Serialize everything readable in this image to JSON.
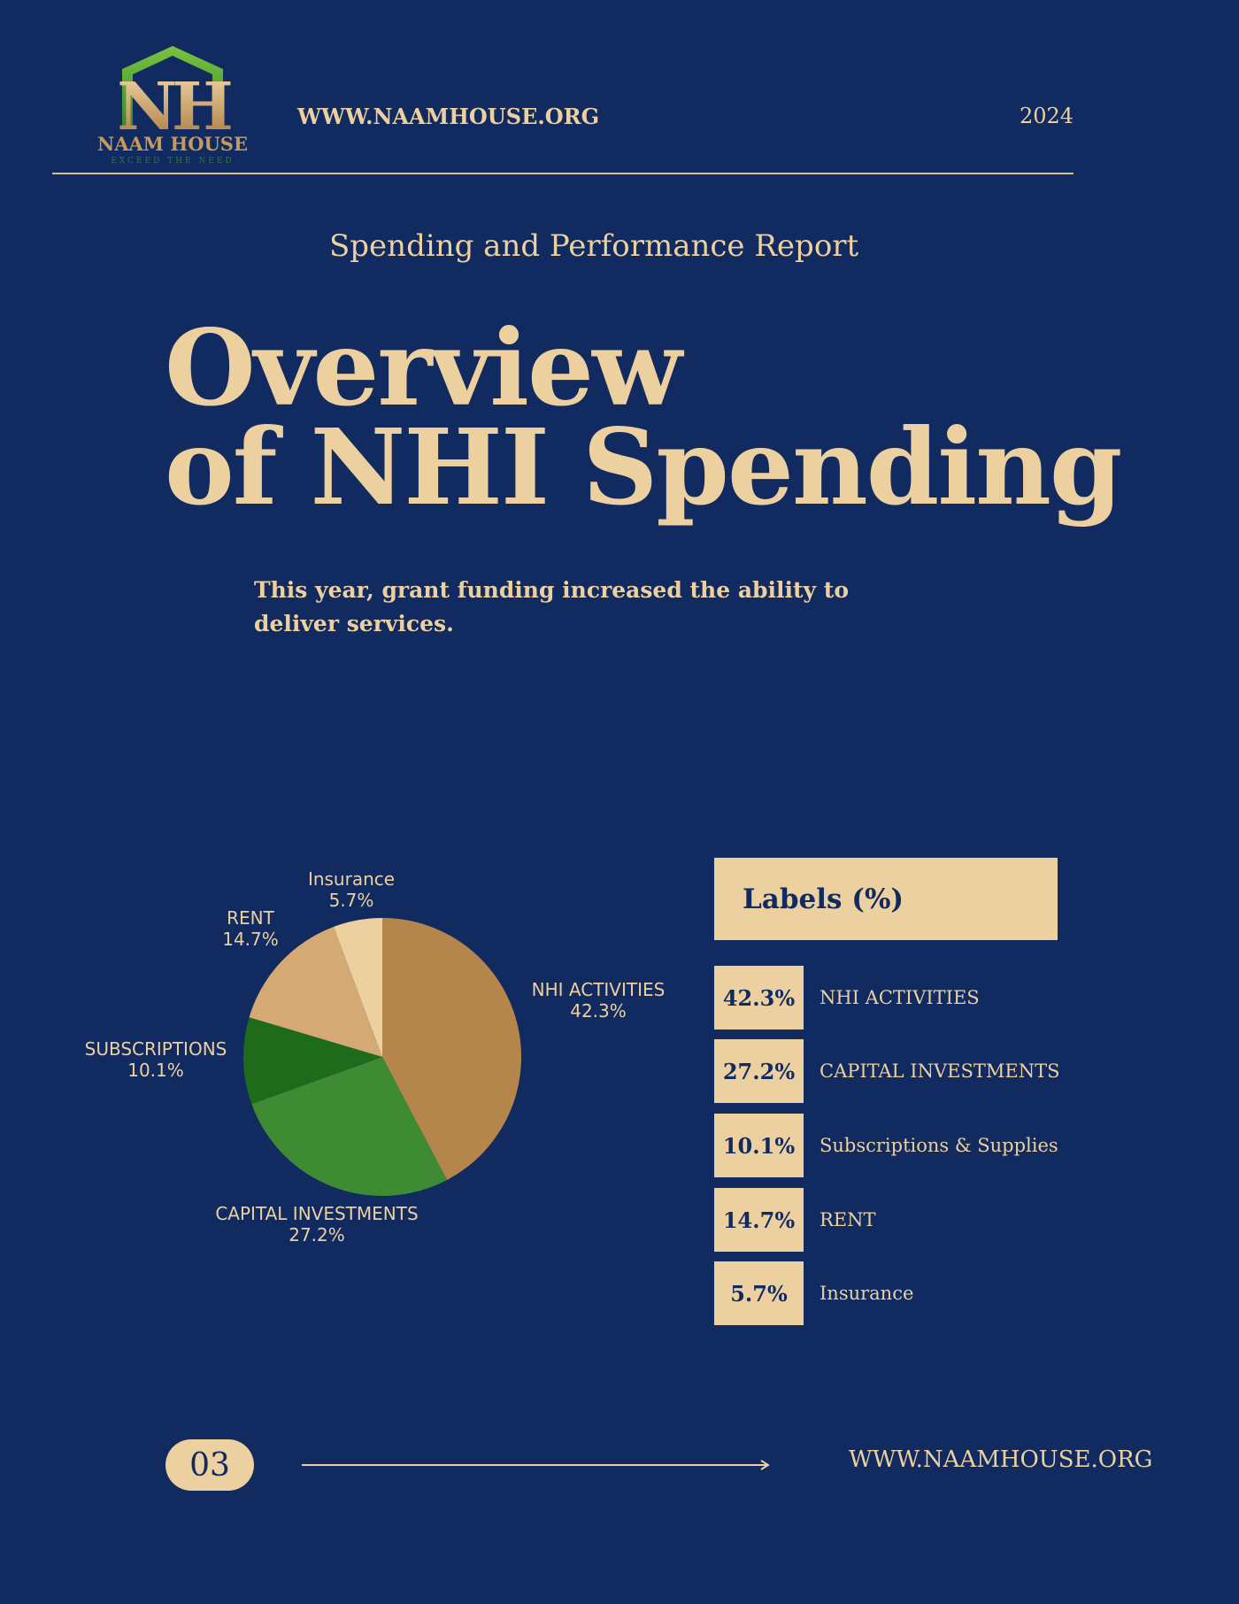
{
  "header": {
    "logo_name": "NAAM HOUSE",
    "logo_tagline": "EXCEED THE NEED",
    "website": "WWW.NAAMHOUSE.ORG",
    "year": "2024"
  },
  "report_subtitle": "Spending and Performance Report",
  "title": {
    "line1": "Overview",
    "line2": "of NHI Spending"
  },
  "intro": "This year, grant funding increased the ability to deliver services.",
  "colors": {
    "background": "#112a5f",
    "accent": "#ecd09f",
    "slice_nhi": "#b5864b",
    "slice_capital": "#3e8b33",
    "slice_subscriptions": "#1e6b1c",
    "slice_rent": "#d4a974",
    "slice_insurance": "#ecd09f"
  },
  "chart_data": {
    "type": "pie",
    "title": "",
    "slices": [
      {
        "label": "NHI ACTIVITIES",
        "value": 42.3,
        "value_label": "42.3%",
        "color": "#b5864b"
      },
      {
        "label": "CAPITAL INVESTMENTS",
        "value": 27.2,
        "value_label": "27.2%",
        "color": "#3e8b33"
      },
      {
        "label": "SUBSCRIPTIONS",
        "value": 10.1,
        "value_label": "10.1%",
        "color": "#1e6b1c"
      },
      {
        "label": "RENT",
        "value": 14.7,
        "value_label": "14.7%",
        "color": "#d4a974"
      },
      {
        "label": "Insurance",
        "value": 5.7,
        "value_label": "5.7%",
        "color": "#ecd09f"
      }
    ]
  },
  "legend": {
    "title": "Labels (%)",
    "items": [
      {
        "value": "42.3%",
        "label": "NHI ACTIVITIES"
      },
      {
        "value": "27.2%",
        "label": "CAPITAL INVESTMENTS"
      },
      {
        "value": "10.1%",
        "label": "Subscriptions & Supplies"
      },
      {
        "value": "14.7%",
        "label": "RENT"
      },
      {
        "value": "5.7%",
        "label": "Insurance"
      }
    ]
  },
  "footer": {
    "page_number": "03",
    "website": "WWW.NAAMHOUSE.ORG"
  }
}
